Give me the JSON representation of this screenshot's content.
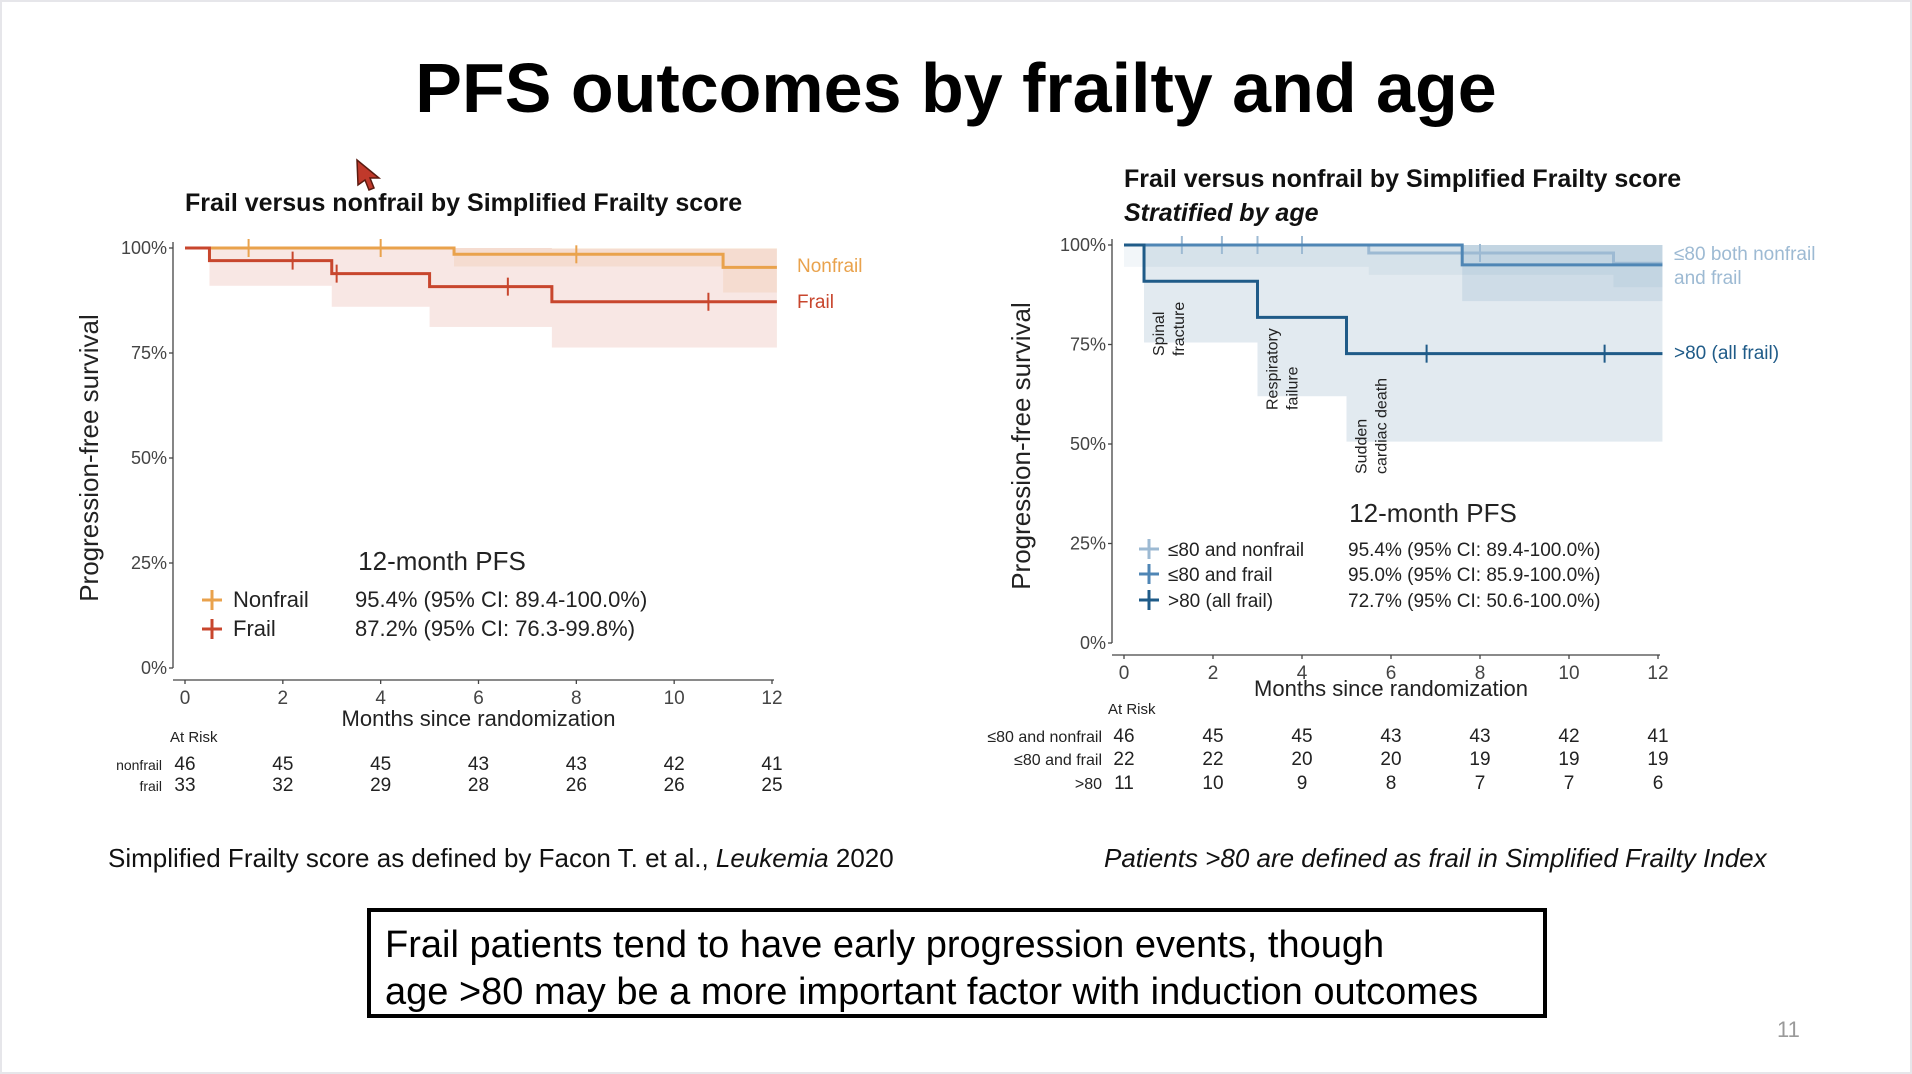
{
  "slide": {
    "title": "PFS outcomes by frailty and age",
    "footnote_left_prefix": "Simplified Frailty score as defined by Facon T. et al., ",
    "footnote_left_journal": "Leukemia",
    "footnote_left_year": " 2020",
    "footnote_right": "Patients >80 are defined as frail in Simplified Frailty Index",
    "callout_line1": "Frail patients tend to have early progression events, though",
    "callout_line2": "age >80 may be a more important factor with induction outcomes",
    "page_number": "11"
  },
  "colors": {
    "nonfrail": "#e9a24c",
    "frail": "#c8462d",
    "le80_nonfrail": "#9dbad3",
    "le80_frail": "#4f86b5",
    "gt80": "#1f5b88"
  },
  "chart_data": [
    {
      "type": "line",
      "subtype": "kaplan-meier",
      "title": "Frail versus nonfrail by Simplified Frailty score",
      "xlabel": "Months since randomization",
      "ylabel": "Progression-free survival",
      "xlim": [
        0,
        12
      ],
      "ylim": [
        0,
        100
      ],
      "x_ticks": [
        0,
        2,
        4,
        6,
        8,
        10,
        12
      ],
      "y_ticks": [
        0,
        25,
        50,
        75,
        100
      ],
      "y_tick_labels": [
        "0%",
        "25%",
        "50%",
        "75%",
        "100%"
      ],
      "series": [
        {
          "name": "Nonfrail",
          "label": "Nonfrail",
          "color": "#e9a24c",
          "steps": [
            [
              0,
              100
            ],
            [
              5.5,
              98.5
            ],
            [
              11.0,
              95.4
            ],
            [
              12.1,
              95.4
            ]
          ],
          "ci": [
            [
              0,
              100,
              100
            ],
            [
              5.5,
              95.6,
              100
            ],
            [
              11.0,
              89.4,
              100
            ],
            [
              12.1,
              89.4,
              100
            ]
          ],
          "censors": [
            [
              1.3,
              100
            ],
            [
              4.0,
              100
            ],
            [
              8.0,
              98.5
            ]
          ]
        },
        {
          "name": "Frail",
          "label": "Frail",
          "color": "#c8462d",
          "steps": [
            [
              0,
              100
            ],
            [
              0.5,
              97.0
            ],
            [
              3.0,
              93.9
            ],
            [
              5.0,
              90.8
            ],
            [
              7.5,
              87.2
            ],
            [
              12.1,
              87.2
            ]
          ],
          "ci": [
            [
              0,
              100,
              100
            ],
            [
              0.5,
              91.0,
              100
            ],
            [
              3.0,
              86.0,
              100
            ],
            [
              5.0,
              81.2,
              100
            ],
            [
              7.5,
              76.3,
              99.8
            ],
            [
              12.1,
              76.3,
              99.8
            ]
          ],
          "censors": [
            [
              2.2,
              97.0
            ],
            [
              3.1,
              93.9
            ],
            [
              6.6,
              90.8
            ],
            [
              10.7,
              87.2
            ]
          ]
        }
      ],
      "legend_title": "12-month PFS",
      "legend": [
        {
          "name": "Nonfrail",
          "value": "95.4% (95% CI: 89.4-100.0%)"
        },
        {
          "name": "Frail",
          "value": "87.2% (95% CI: 76.3-99.8%)"
        }
      ],
      "at_risk": {
        "title": "At Risk",
        "times": [
          0,
          2,
          4,
          6,
          8,
          10,
          12
        ],
        "rows": [
          {
            "label": "nonfrail",
            "values": [
              "46",
              "45",
              "45",
              "43",
              "43",
              "42",
              "41"
            ]
          },
          {
            "label": "frail",
            "values": [
              "33",
              "32",
              "29",
              "28",
              "26",
              "26",
              "25"
            ]
          }
        ]
      }
    },
    {
      "type": "line",
      "subtype": "kaplan-meier",
      "title": "Frail versus nonfrail by Simplified Frailty score",
      "subtitle": "Stratified by age",
      "xlabel": "Months since randomization",
      "ylabel": "Progression-free survival",
      "xlim": [
        0,
        12
      ],
      "ylim": [
        0,
        100
      ],
      "x_ticks": [
        0,
        2,
        4,
        6,
        8,
        10,
        12
      ],
      "y_ticks": [
        0,
        25,
        50,
        75,
        100
      ],
      "y_tick_labels": [
        "0%",
        "25%",
        "50%",
        "75%",
        "100%"
      ],
      "series": [
        {
          "name": "≤80 and nonfrail",
          "label": "≤80 both nonfrail\nand frail",
          "color": "#9dbad3",
          "steps": [
            [
              0,
              100
            ],
            [
              5.5,
              98.0
            ],
            [
              11.0,
              95.4
            ],
            [
              12.1,
              95.4
            ]
          ],
          "ci": [
            [
              0,
              94.5,
              100
            ],
            [
              5.5,
              92.5,
              100
            ],
            [
              11.0,
              89.4,
              100
            ],
            [
              12.1,
              89.4,
              100
            ]
          ],
          "censors": [
            [
              1.3,
              100
            ],
            [
              2.2,
              100
            ],
            [
              3.0,
              100
            ],
            [
              4.0,
              100
            ],
            [
              8.0,
              98.0
            ]
          ]
        },
        {
          "name": "≤80 and frail",
          "label": "",
          "color": "#4f86b5",
          "steps": [
            [
              0,
              100
            ],
            [
              7.6,
              95.0
            ],
            [
              12.1,
              95.0
            ]
          ],
          "ci": [
            [
              0,
              100,
              100
            ],
            [
              7.6,
              85.9,
              100
            ],
            [
              12.1,
              85.9,
              100
            ]
          ],
          "censors": []
        },
        {
          "name": ">80 (all frail)",
          "label": ">80 (all frail)",
          "color": "#1f5b88",
          "steps": [
            [
              0,
              100
            ],
            [
              0.45,
              90.9
            ],
            [
              3.0,
              81.8
            ],
            [
              5.0,
              72.7
            ],
            [
              12.1,
              72.7
            ]
          ],
          "ci": [
            [
              0,
              100,
              100
            ],
            [
              0.45,
              75.5,
              100
            ],
            [
              3.0,
              62.0,
              100
            ],
            [
              5.0,
              50.6,
              100
            ],
            [
              12.1,
              50.6,
              100
            ]
          ],
          "censors": [
            [
              6.8,
              72.7
            ],
            [
              10.8,
              72.7
            ]
          ]
        }
      ],
      "event_annotations": [
        {
          "text1": "Spinal",
          "text2": "fracture",
          "x": 0.45
        },
        {
          "text1": "Respiratory",
          "text2": "failure",
          "x": 3.0
        },
        {
          "text1": "Sudden",
          "text2": "cardiac death",
          "x": 5.0
        }
      ],
      "legend_title": "12-month PFS",
      "legend": [
        {
          "name": "≤80 and nonfrail",
          "value": "95.4% (95% CI: 89.4-100.0%)"
        },
        {
          "name": "≤80 and frail",
          "value": "95.0% (95% CI: 85.9-100.0%)"
        },
        {
          "name": ">80 (all frail)",
          "value": "72.7% (95% CI: 50.6-100.0%)"
        }
      ],
      "at_risk": {
        "title": "At Risk",
        "times": [
          0,
          2,
          4,
          6,
          8,
          10,
          12
        ],
        "rows": [
          {
            "label": "≤80 and nonfrail",
            "values": [
              "46",
              "45",
              "45",
              "43",
              "43",
              "42",
              "41"
            ]
          },
          {
            "label": "≤80 and frail",
            "values": [
              "22",
              "22",
              "20",
              "20",
              "19",
              "19",
              "19"
            ]
          },
          {
            "label": ">80",
            "values": [
              "11",
              "10",
              "9",
              "8",
              "7",
              "7",
              "6"
            ]
          }
        ]
      }
    }
  ]
}
